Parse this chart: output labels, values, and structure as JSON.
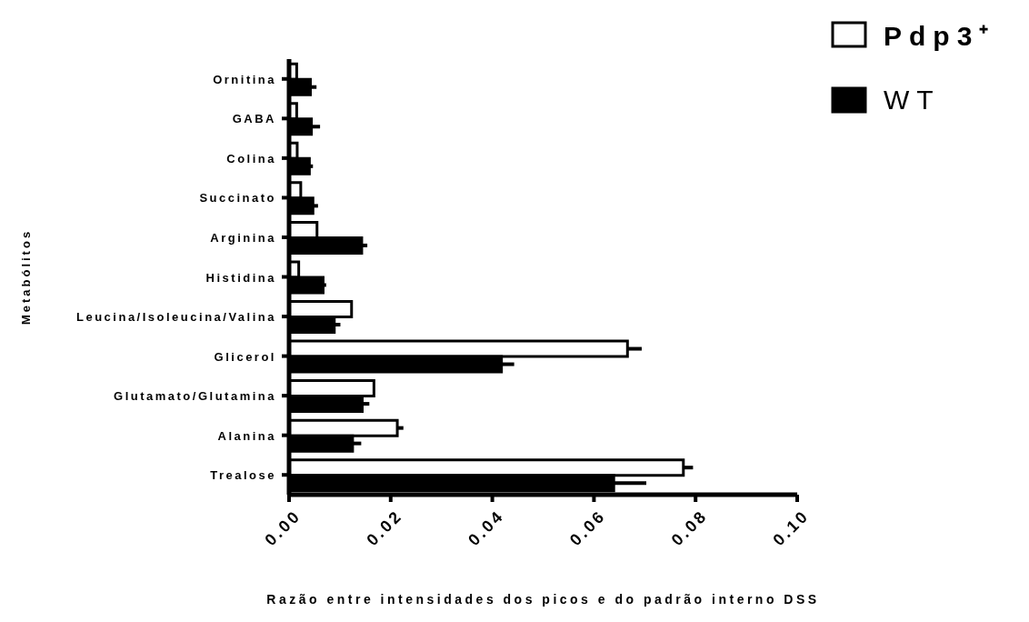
{
  "chart_data": {
    "type": "bar",
    "orientation": "horizontal",
    "categories": [
      "Ornitina",
      "GABA",
      "Colina",
      "Succinato",
      "Arginina",
      "Histidina",
      "Leucina/Isoleucina/Valina",
      "Glicerol",
      "Glutamato/Glutamina",
      "Alanina",
      "Trealose"
    ],
    "series": [
      {
        "name": "Pdp3⁺",
        "color": "#ffffff",
        "values": [
          0.0015,
          0.0015,
          0.0016,
          0.0023,
          0.0055,
          0.0019,
          0.0123,
          0.0666,
          0.0167,
          0.0213,
          0.0776
        ],
        "errors": [
          null,
          null,
          null,
          null,
          null,
          null,
          null,
          [
            0.0666,
            0.0694
          ],
          null,
          [
            0.0213,
            0.0225
          ],
          [
            0.0776,
            0.0795
          ]
        ]
      },
      {
        "name": "WT",
        "color": "#000000",
        "values": [
          0.0042,
          0.0044,
          0.004,
          0.0047,
          0.0143,
          0.0067,
          0.0089,
          0.0418,
          0.0144,
          0.0125,
          0.0639
        ],
        "errors": [
          [
            0.0042,
            0.0054
          ],
          [
            0.0044,
            0.0061
          ],
          [
            0.004,
            0.0047
          ],
          [
            0.0047,
            0.0057
          ],
          [
            0.0143,
            0.0154
          ],
          [
            0.0067,
            0.0073
          ],
          [
            0.0089,
            0.0101
          ],
          [
            0.0418,
            0.0443
          ],
          [
            0.0144,
            0.0158
          ],
          [
            0.0125,
            0.0142
          ],
          [
            0.0639,
            0.0703
          ]
        ]
      }
    ],
    "xlabel": "Razão entre intensidades dos picos e do padrão interno DSS",
    "ylabel": "Metabólitos",
    "xlim": [
      0,
      0.1
    ],
    "xticks": [
      {
        "value": 0,
        "label": "0.00"
      },
      {
        "value": 0.02,
        "label": "0.02"
      },
      {
        "value": 0.04,
        "label": "0.04"
      },
      {
        "value": 0.06,
        "label": "0.06"
      },
      {
        "value": 0.08,
        "label": "0.08"
      },
      {
        "value": 0.1,
        "label": "0.10"
      }
    ],
    "grid": false,
    "legend": "top right"
  }
}
